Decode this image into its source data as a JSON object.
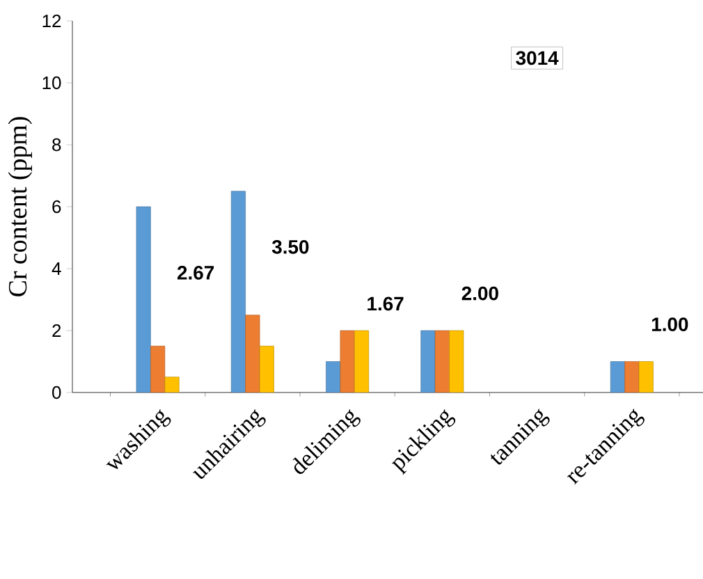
{
  "chart_data": {
    "type": "bar",
    "ylabel": "Cr content (ppm)",
    "categories": [
      "washing",
      "unhairing",
      "deliming",
      "pickling",
      "tanning",
      "re-tanning"
    ],
    "series": [
      {
        "color": "#5b9bd5",
        "values": [
          6,
          6.5,
          1,
          2,
          null,
          1
        ]
      },
      {
        "color": "#ed7d31",
        "values": [
          1.5,
          2.5,
          2,
          2,
          null,
          1
        ]
      },
      {
        "color": "#ffc000",
        "values": [
          0.5,
          1.5,
          2,
          2,
          null,
          1
        ]
      }
    ],
    "ylim": [
      0,
      12
    ],
    "yticks": [
      0,
      2,
      4,
      6,
      8,
      10,
      12
    ],
    "grid": false,
    "annotations": [
      "2.67",
      "3.50",
      "1.67",
      "2.00",
      "3014",
      "1.00"
    ]
  }
}
